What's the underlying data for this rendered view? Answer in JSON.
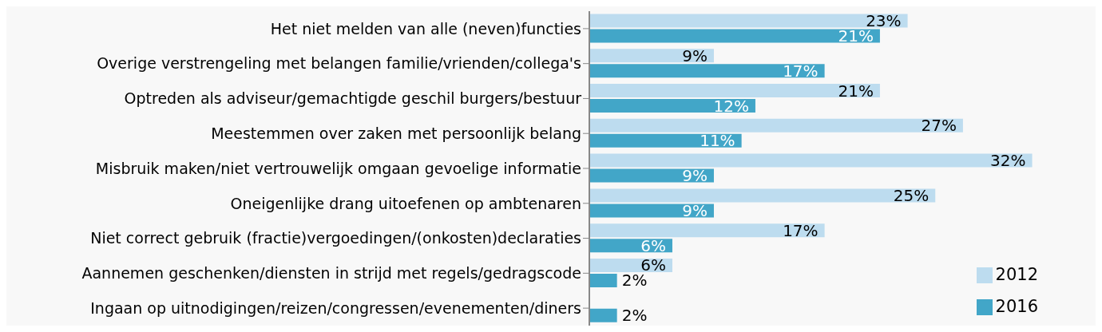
{
  "chart_data": {
    "type": "bar",
    "orientation": "horizontal",
    "legend": "bottom right",
    "grid": false,
    "categories": [
      "Het niet melden van alle (neven)functies",
      "Overige verstrengeling met belangen familie/vrienden/collega's",
      "Optreden als adviseur/gemachtigde geschil burgers/bestuur",
      "Meestemmen over zaken met persoonlijk belang",
      "Misbruik maken/niet vertrouwelijk omgaan gevoelige informatie",
      "Oneigenlijke drang uitoefenen op ambtenaren",
      "Niet correct gebruik (fractie)vergoedingen/(onkosten)declaraties",
      "Aannemen geschenken/diensten in strijd met regels/gedragscode",
      "Ingaan op uitnodigingen/reizen/congressen/evenementen/diners"
    ],
    "series": [
      {
        "name": "2012",
        "color": "#bddcef",
        "values": [
          23,
          9,
          21,
          27,
          32,
          25,
          17,
          6,
          null
        ],
        "value_labels": [
          "23%",
          "9%",
          "21%",
          "27%",
          "32%",
          "25%",
          "17%",
          "6%",
          null
        ]
      },
      {
        "name": "2016",
        "color": "#42a6c8",
        "values": [
          21,
          17,
          12,
          11,
          9,
          9,
          6,
          2,
          2
        ],
        "value_labels": [
          "21%",
          "17%",
          "12%",
          "11%",
          "9%",
          "9%",
          "6%",
          "2%",
          "2%"
        ]
      }
    ]
  }
}
